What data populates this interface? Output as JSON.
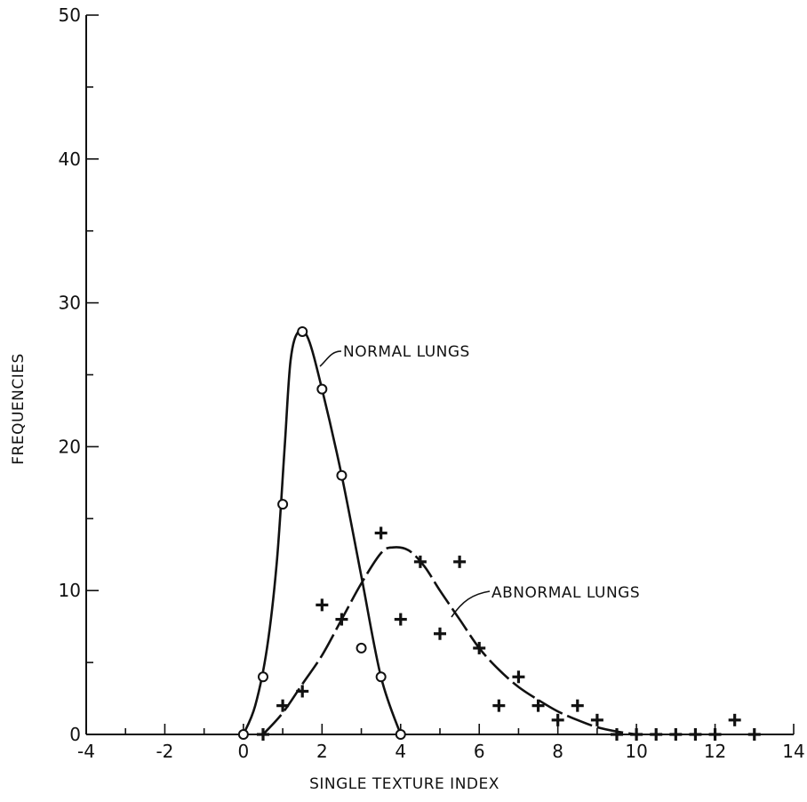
{
  "chart_data": {
    "type": "scatter",
    "xlabel": "SINGLE TEXTURE INDEX",
    "ylabel": "FREQUENCIES",
    "xlim": [
      -4,
      14
    ],
    "ylim": [
      0,
      50
    ],
    "x_ticks": [
      -4,
      -2,
      0,
      2,
      4,
      6,
      8,
      10,
      12,
      14
    ],
    "y_ticks": [
      0,
      10,
      20,
      30,
      40,
      50
    ],
    "grid": false,
    "series": [
      {
        "name": "NORMAL LUNGS",
        "marker": "circle",
        "points": [
          [
            0,
            0
          ],
          [
            0.5,
            4
          ],
          [
            1,
            16
          ],
          [
            1.5,
            28
          ],
          [
            2,
            24
          ],
          [
            2.5,
            18
          ],
          [
            3,
            6
          ],
          [
            3.5,
            4
          ],
          [
            4,
            0
          ]
        ],
        "curve": [
          [
            0,
            0
          ],
          [
            0.3,
            2
          ],
          [
            0.6,
            6
          ],
          [
            0.85,
            12
          ],
          [
            1.05,
            20
          ],
          [
            1.2,
            26
          ],
          [
            1.4,
            28
          ],
          [
            1.65,
            27.5
          ],
          [
            2,
            24
          ],
          [
            2.5,
            18
          ],
          [
            3,
            11
          ],
          [
            3.5,
            4
          ],
          [
            4,
            0
          ]
        ]
      },
      {
        "name": "ABNORMAL LUNGS",
        "marker": "plus",
        "points": [
          [
            0.5,
            0
          ],
          [
            1,
            2
          ],
          [
            1.5,
            3
          ],
          [
            2,
            9
          ],
          [
            2.5,
            8
          ],
          [
            3.5,
            14
          ],
          [
            4,
            8
          ],
          [
            4.5,
            12
          ],
          [
            5,
            7
          ],
          [
            5.5,
            12
          ],
          [
            6,
            6
          ],
          [
            6.5,
            2
          ],
          [
            7,
            4
          ],
          [
            7.5,
            2
          ],
          [
            8,
            1
          ],
          [
            8.5,
            2
          ],
          [
            9,
            1
          ],
          [
            9.5,
            0
          ],
          [
            10,
            0
          ],
          [
            10.5,
            0
          ],
          [
            11,
            0
          ],
          [
            11.5,
            0
          ],
          [
            12,
            0
          ],
          [
            12.5,
            1
          ],
          [
            13,
            0
          ]
        ],
        "curve": [
          [
            0.5,
            0
          ],
          [
            1,
            1.5
          ],
          [
            1.5,
            3.5
          ],
          [
            2,
            5.5
          ],
          [
            2.5,
            8
          ],
          [
            3,
            10.5
          ],
          [
            3.5,
            12.6
          ],
          [
            3.8,
            13
          ],
          [
            4.2,
            12.8
          ],
          [
            4.6,
            11.7
          ],
          [
            5,
            10
          ],
          [
            5.5,
            8
          ],
          [
            6,
            6
          ],
          [
            6.5,
            4.5
          ],
          [
            7,
            3.3
          ],
          [
            7.5,
            2.4
          ],
          [
            8,
            1.6
          ],
          [
            8.5,
            1
          ],
          [
            9,
            0.5
          ],
          [
            9.5,
            0.2
          ],
          [
            10,
            0
          ]
        ]
      }
    ]
  }
}
